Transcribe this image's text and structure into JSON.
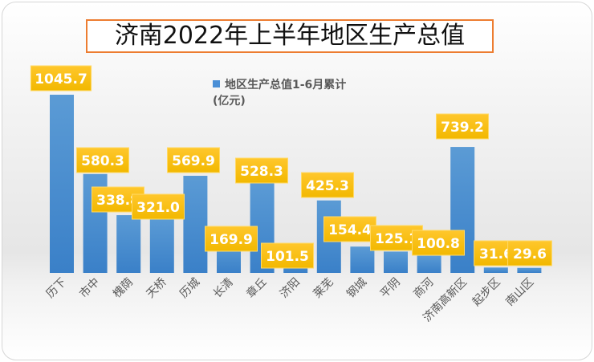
{
  "chart_data": {
    "type": "bar",
    "title": "济南2022年上半年地区生产总值",
    "legend": {
      "label": "地区生产总值1-6月累计(亿元)",
      "label_line1": "地区生产总值1-6月累计",
      "label_line2": "(亿元)",
      "position": "top-center"
    },
    "xlabel": "",
    "ylabel": "",
    "ylim": [
      0,
      1045.7
    ],
    "grid": false,
    "categories": [
      "历下",
      "市中",
      "槐荫",
      "天桥",
      "历城",
      "长清",
      "章丘",
      "济阳",
      "莱芜",
      "钢城",
      "平阴",
      "商河",
      "济南高新区",
      "起步区",
      "南山区"
    ],
    "values": [
      1045.7,
      580.3,
      338.8,
      321.0,
      569.9,
      169.9,
      528.3,
      101.5,
      425.3,
      154.4,
      125.1,
      100.8,
      739.2,
      31.6,
      29.6
    ],
    "value_labels": [
      "1045.7",
      "580.3",
      "338.8",
      "321.0",
      "569.9",
      "169.9",
      "528.3",
      "101.5",
      "425.3",
      "154.4",
      "125.1",
      "100.8",
      "739.2",
      "31.6",
      "29.6"
    ],
    "colors": {
      "bar": "#4a8fd6",
      "label_bg": "#ffc000",
      "title_border": "#ed7d31"
    }
  }
}
